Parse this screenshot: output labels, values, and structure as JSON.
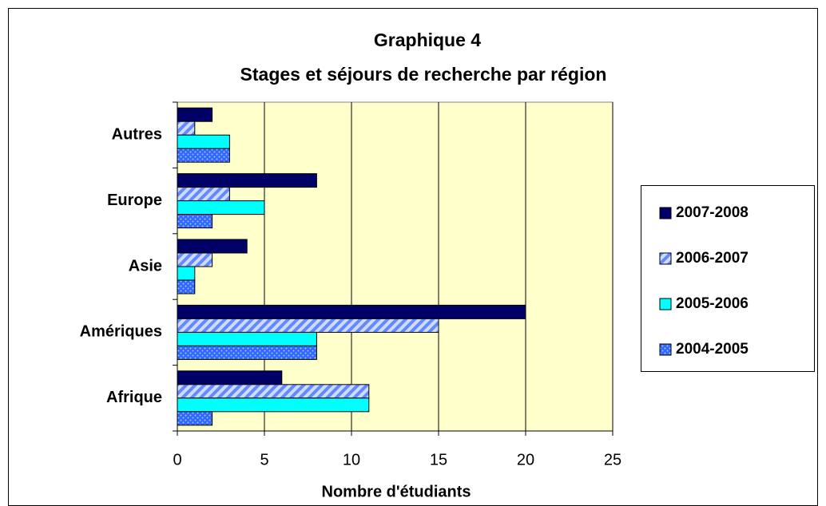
{
  "chart_data": {
    "type": "bar",
    "orientation": "horizontal",
    "title": [
      "Graphique 4",
      "Stages et séjours de recherche par région"
    ],
    "x_label": "Nombre d'étudiants",
    "categories": [
      "Afrique",
      "Amériques",
      "Asie",
      "Europe",
      "Autres"
    ],
    "series": [
      {
        "name": "2007-2008",
        "color": "#000066",
        "pattern": "solid",
        "values": [
          6,
          20,
          4,
          8,
          2
        ]
      },
      {
        "name": "2006-2007",
        "color": "#6688ff",
        "pattern": "hatch",
        "values": [
          11,
          15,
          2,
          3,
          1
        ]
      },
      {
        "name": "2005-2006",
        "color": "#00ffff",
        "pattern": "solid",
        "values": [
          11,
          8,
          1,
          5,
          3
        ]
      },
      {
        "name": "2004-2005",
        "color": "#3366ff",
        "pattern": "dots",
        "values": [
          2,
          8,
          1,
          2,
          3
        ]
      }
    ],
    "xlim": [
      0,
      25
    ],
    "xticks": [
      0,
      5,
      10,
      15,
      20,
      25
    ],
    "grid": true,
    "plot_background": "#ffffcc",
    "legend": "right"
  }
}
